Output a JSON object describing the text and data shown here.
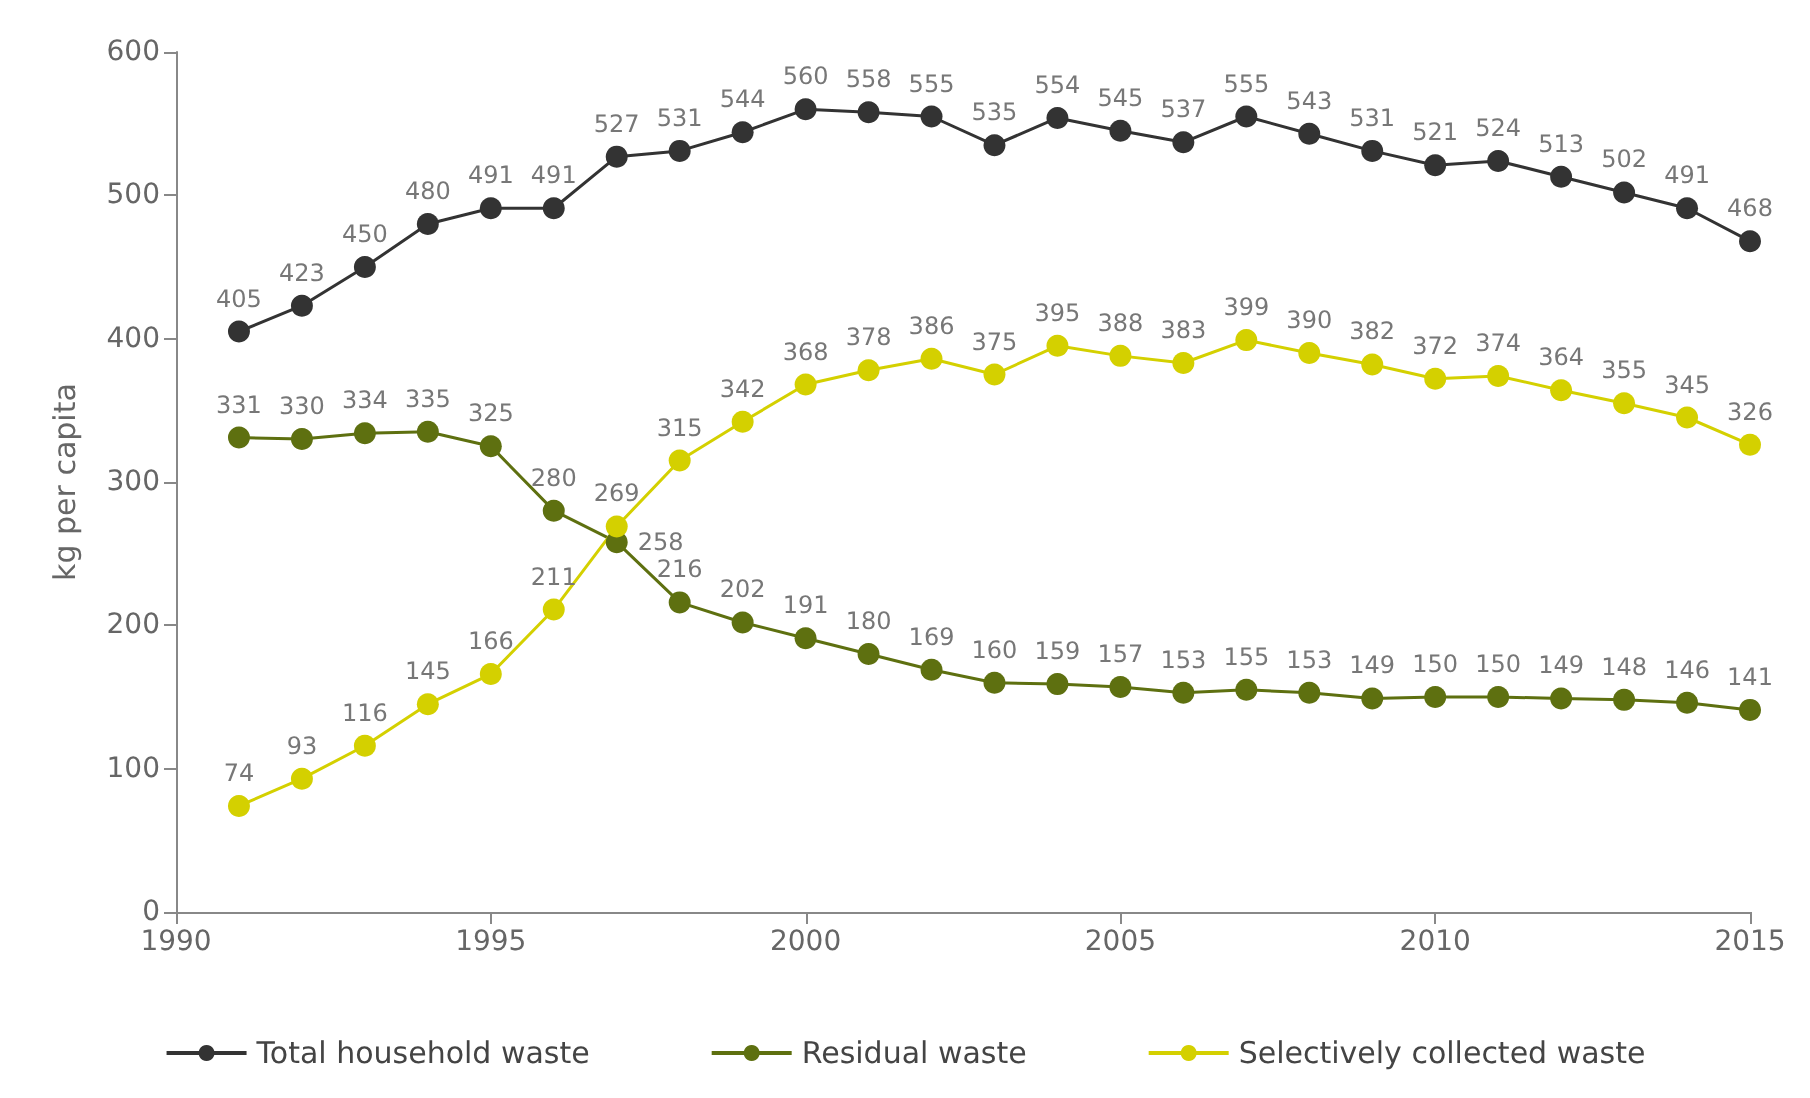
{
  "chart_data": {
    "type": "line",
    "ylabel": "kg per capita",
    "x": [
      1991,
      1992,
      1993,
      1994,
      1995,
      1996,
      1997,
      1998,
      1999,
      2000,
      2001,
      2002,
      2003,
      2004,
      2005,
      2006,
      2007,
      2008,
      2009,
      2010,
      2011,
      2012,
      2013,
      2014,
      2015
    ],
    "series": [
      {
        "name": "Total household waste",
        "color": "#333333",
        "values": [
          405,
          423,
          450,
          480,
          491,
          491,
          527,
          531,
          544,
          560,
          558,
          555,
          535,
          554,
          545,
          537,
          555,
          543,
          531,
          521,
          524,
          513,
          502,
          491,
          468
        ]
      },
      {
        "name": "Residual waste",
        "color": "#5e7010",
        "values": [
          331,
          330,
          334,
          335,
          325,
          280,
          258,
          216,
          202,
          191,
          180,
          169,
          160,
          159,
          157,
          153,
          155,
          153,
          149,
          150,
          150,
          149,
          148,
          146,
          141
        ]
      },
      {
        "name": "Selectively collected waste",
        "color": "#d4d000",
        "values": [
          74,
          93,
          116,
          145,
          166,
          211,
          269,
          315,
          342,
          368,
          378,
          386,
          375,
          395,
          388,
          383,
          399,
          390,
          382,
          372,
          374,
          364,
          355,
          345,
          326
        ]
      }
    ],
    "xlim": [
      1990,
      2015
    ],
    "xticks": [
      1990,
      1995,
      2000,
      2005,
      2010,
      2015
    ],
    "ylim": [
      0,
      600
    ],
    "yticks": [
      0,
      100,
      200,
      300,
      400,
      500,
      600
    ],
    "grid": false,
    "legend": "bottom",
    "marker": "circle",
    "line_style": "solid",
    "data_labels": true
  }
}
